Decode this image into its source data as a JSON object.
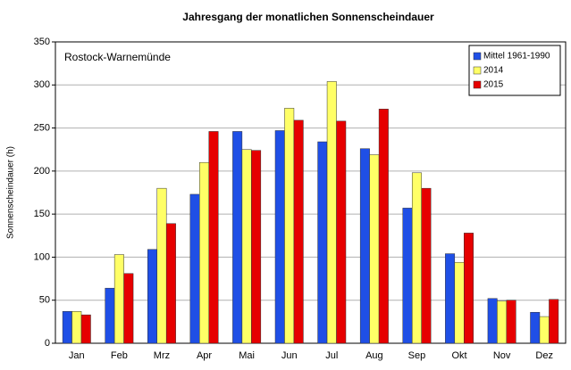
{
  "chart_data": {
    "type": "bar",
    "title": "Jahresgang der monatlichen Sonnenscheindauer",
    "annotation": "Rostock-Warnemünde",
    "ylabel": "Sonnenscheindauer (h)",
    "categories": [
      "Jan",
      "Feb",
      "Mrz",
      "Apr",
      "Mai",
      "Jun",
      "Jul",
      "Aug",
      "Sep",
      "Okt",
      "Nov",
      "Dez"
    ],
    "series": [
      {
        "name": "Mittel 1961-1990",
        "color": "#1f4fe6",
        "values": [
          37,
          64,
          109,
          173,
          246,
          247,
          234,
          226,
          157,
          104,
          52,
          36
        ]
      },
      {
        "name": "2014",
        "color": "#ffff66",
        "values": [
          37,
          103,
          180,
          210,
          225,
          273,
          304,
          219,
          198,
          94,
          49,
          31
        ]
      },
      {
        "name": "2015",
        "color": "#e60000",
        "values": [
          33,
          81,
          139,
          246,
          224,
          259,
          258,
          272,
          180,
          128,
          50,
          51
        ]
      }
    ],
    "ylim": [
      0,
      350
    ],
    "yticks": [
      0,
      50,
      100,
      150,
      200,
      250,
      300,
      350
    ],
    "grid": true,
    "legend": "upper right"
  }
}
